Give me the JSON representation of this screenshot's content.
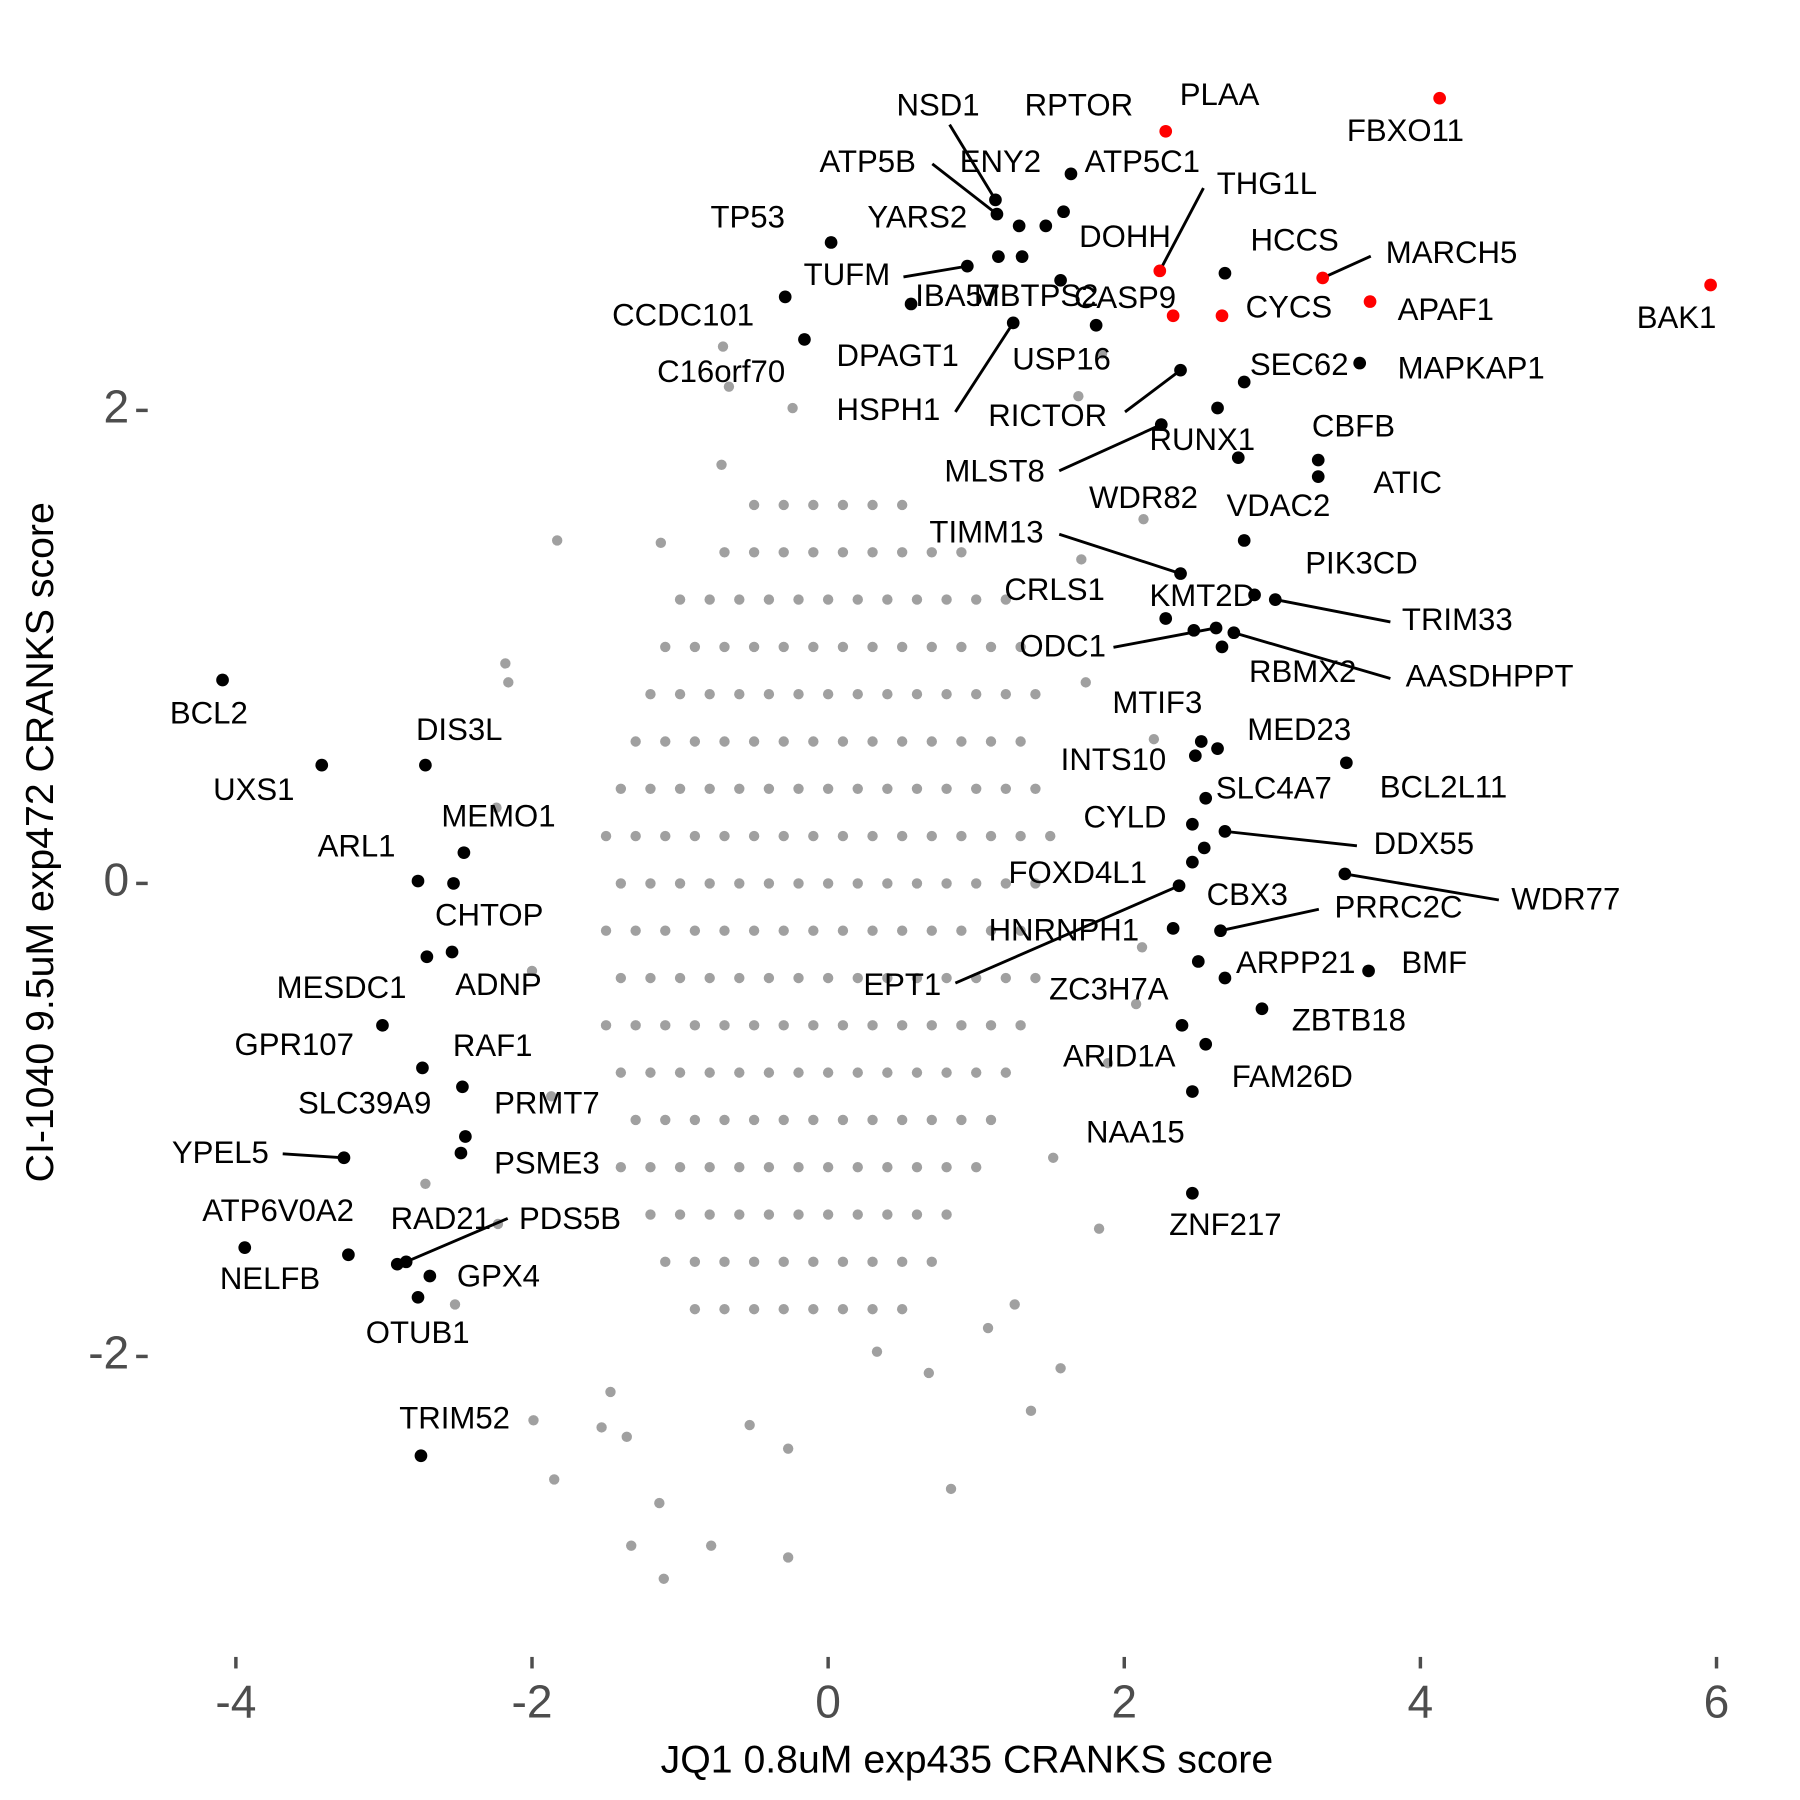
{
  "chart_data": {
    "type": "scatter",
    "xlabel": "JQ1 0.8uM exp435 CRANKS score",
    "ylabel": "CI-1040 9.5uM exp472 CRANKS score",
    "xlim": [
      -4.58,
      6.33
    ],
    "ylim": [
      -3.29,
      3.54
    ],
    "xticks": [
      -4,
      -2,
      0,
      2,
      4,
      6
    ],
    "yticks": [
      -2,
      0,
      2
    ],
    "background": {
      "color": "#a0a0a0",
      "x": [
        -0.5,
        -0.3,
        -0.1,
        0.1,
        0.3,
        0.5,
        -0.7,
        -0.5,
        -0.3,
        -0.1,
        0.1,
        0.3,
        0.5,
        0.7,
        0.9,
        -1.0,
        -0.8,
        -0.6,
        -0.4,
        -0.2,
        0,
        0.2,
        0.4,
        0.6,
        0.8,
        1.0,
        1.2,
        -1.1,
        -0.9,
        -0.7,
        -0.5,
        -0.3,
        -0.1,
        0.1,
        0.3,
        0.5,
        0.7,
        0.9,
        1.1,
        1.3,
        -1.2,
        -1.0,
        -0.8,
        -0.6,
        -0.4,
        -0.2,
        0,
        0.2,
        0.4,
        0.6,
        0.8,
        1.0,
        1.2,
        1.4,
        -1.3,
        -1.1,
        -0.9,
        -0.7,
        -0.5,
        -0.3,
        -0.1,
        0.1,
        0.3,
        0.5,
        0.7,
        0.9,
        1.1,
        1.3,
        -1.4,
        -1.2,
        -1.0,
        -0.8,
        -0.6,
        -0.4,
        -0.2,
        0,
        0.2,
        0.4,
        0.6,
        0.8,
        1.0,
        1.2,
        1.4,
        -1.5,
        -1.3,
        -1.1,
        -0.9,
        -0.7,
        -0.5,
        -0.3,
        -0.1,
        0.1,
        0.3,
        0.5,
        0.7,
        0.9,
        1.1,
        1.3,
        1.5,
        -1.4,
        -1.2,
        -1.0,
        -0.8,
        -0.6,
        -0.4,
        -0.2,
        0,
        0.2,
        0.4,
        0.6,
        0.8,
        1.0,
        1.2,
        1.4,
        -1.5,
        -1.3,
        -1.1,
        -0.9,
        -0.7,
        -0.5,
        -0.3,
        -0.1,
        0.1,
        0.3,
        0.5,
        0.7,
        0.9,
        1.1,
        1.3,
        -1.4,
        -1.2,
        -1.0,
        -0.8,
        -0.6,
        -0.4,
        -0.2,
        0,
        0.2,
        0.4,
        0.6,
        0.8,
        1.0,
        1.2,
        1.4,
        -1.5,
        -1.3,
        -1.1,
        -0.9,
        -0.7,
        -0.5,
        -0.3,
        -0.1,
        0.1,
        0.3,
        0.5,
        0.7,
        0.9,
        1.1,
        1.3,
        -1.4,
        -1.2,
        -1.0,
        -0.8,
        -0.6,
        -0.4,
        -0.2,
        0,
        0.2,
        0.4,
        0.6,
        0.8,
        1.0,
        1.2,
        -1.3,
        -1.1,
        -0.9,
        -0.7,
        -0.5,
        -0.3,
        -0.1,
        0.1,
        0.3,
        0.5,
        0.7,
        0.9,
        1.1,
        -1.4,
        -1.2,
        -1.0,
        -0.8,
        -0.6,
        -0.4,
        -0.2,
        0,
        0.2,
        0.4,
        0.6,
        0.8,
        1.0,
        -1.2,
        -1.0,
        -0.8,
        -0.6,
        -0.4,
        -0.2,
        0,
        0.2,
        0.4,
        0.6,
        0.8,
        -1.1,
        -0.9,
        -0.7,
        -0.5,
        -0.3,
        -0.1,
        0.1,
        0.3,
        0.5,
        0.7,
        -0.9,
        -0.7,
        -0.5,
        -0.3,
        -0.1,
        0.1,
        0.3,
        0.5,
        -1.83,
        -2.18,
        -2.16,
        -0.72,
        -0.67,
        -0.24,
        -1.13,
        -0.71,
        1.85,
        1.69,
        2.13,
        1.71,
        1.74,
        2.2,
        2.12,
        2.08,
        1.52,
        1.26,
        1.08,
        1.37,
        0.83,
        1.57,
        -0.27,
        -0.53,
        -0.79,
        -1.11,
        -0.27,
        -1.33,
        -1.14,
        -1.85,
        -1.99,
        -1.53,
        -1.36,
        -2.23,
        -2.72,
        -2.52,
        -1.47,
        0.33,
        0.68,
        -2.24,
        -2.0,
        -1.87,
        1.89,
        1.83
      ],
      "y": [
        1.6,
        1.6,
        1.6,
        1.6,
        1.6,
        1.6,
        1.4,
        1.4,
        1.4,
        1.4,
        1.4,
        1.4,
        1.4,
        1.4,
        1.4,
        1.2,
        1.2,
        1.2,
        1.2,
        1.2,
        1.2,
        1.2,
        1.2,
        1.2,
        1.2,
        1.2,
        1.2,
        1.0,
        1.0,
        1.0,
        1.0,
        1.0,
        1.0,
        1.0,
        1.0,
        1.0,
        1.0,
        1.0,
        1.0,
        1.0,
        0.8,
        0.8,
        0.8,
        0.8,
        0.8,
        0.8,
        0.8,
        0.8,
        0.8,
        0.8,
        0.8,
        0.8,
        0.8,
        0.8,
        0.6,
        0.6,
        0.6,
        0.6,
        0.6,
        0.6,
        0.6,
        0.6,
        0.6,
        0.6,
        0.6,
        0.6,
        0.6,
        0.6,
        0.4,
        0.4,
        0.4,
        0.4,
        0.4,
        0.4,
        0.4,
        0.4,
        0.4,
        0.4,
        0.4,
        0.4,
        0.4,
        0.4,
        0.4,
        0.2,
        0.2,
        0.2,
        0.2,
        0.2,
        0.2,
        0.2,
        0.2,
        0.2,
        0.2,
        0.2,
        0.2,
        0.2,
        0.2,
        0.2,
        0.2,
        0,
        0,
        0,
        0,
        0,
        0,
        0,
        0,
        0,
        0,
        0,
        0,
        0,
        0,
        0,
        -0.2,
        -0.2,
        -0.2,
        -0.2,
        -0.2,
        -0.2,
        -0.2,
        -0.2,
        -0.2,
        -0.2,
        -0.2,
        -0.2,
        -0.2,
        -0.2,
        -0.2,
        -0.4,
        -0.4,
        -0.4,
        -0.4,
        -0.4,
        -0.4,
        -0.4,
        -0.4,
        -0.4,
        -0.4,
        -0.4,
        -0.4,
        -0.4,
        -0.4,
        -0.4,
        -0.6,
        -0.6,
        -0.6,
        -0.6,
        -0.6,
        -0.6,
        -0.6,
        -0.6,
        -0.6,
        -0.6,
        -0.6,
        -0.6,
        -0.6,
        -0.6,
        -0.6,
        -0.8,
        -0.8,
        -0.8,
        -0.8,
        -0.8,
        -0.8,
        -0.8,
        -0.8,
        -0.8,
        -0.8,
        -0.8,
        -0.8,
        -0.8,
        -0.8,
        -1.0,
        -1.0,
        -1.0,
        -1.0,
        -1.0,
        -1.0,
        -1.0,
        -1.0,
        -1.0,
        -1.0,
        -1.0,
        -1.0,
        -1.0,
        -1.2,
        -1.2,
        -1.2,
        -1.2,
        -1.2,
        -1.2,
        -1.2,
        -1.2,
        -1.2,
        -1.2,
        -1.2,
        -1.2,
        -1.2,
        -1.4,
        -1.4,
        -1.4,
        -1.4,
        -1.4,
        -1.4,
        -1.4,
        -1.4,
        -1.4,
        -1.4,
        -1.4,
        -1.6,
        -1.6,
        -1.6,
        -1.6,
        -1.6,
        -1.6,
        -1.6,
        -1.6,
        -1.6,
        -1.6,
        -1.8,
        -1.8,
        -1.8,
        -1.8,
        -1.8,
        -1.8,
        -1.8,
        -1.8,
        1.45,
        0.93,
        0.85,
        1.77,
        2.1,
        2.01,
        1.44,
        2.27,
        2.24,
        2.06,
        1.54,
        1.37,
        0.85,
        0.61,
        -0.27,
        -0.51,
        -1.16,
        -1.78,
        -1.88,
        -2.23,
        -2.56,
        -2.05,
        -2.39,
        -2.29,
        -2.8,
        -2.94,
        -2.85,
        -2.8,
        -2.62,
        -2.52,
        -2.27,
        -2.3,
        -2.34,
        -1.44,
        -1.27,
        -1.78,
        -2.15,
        -1.98,
        -2.07,
        0.32,
        -0.37,
        -0.9,
        -0.76,
        -1.46
      ]
    },
    "genes": {
      "labels": [
        "NSD1",
        "RPTOR",
        "PLAA",
        "FBXO11",
        "ATP5B",
        "ENY2",
        "ATP5C1",
        "YARS2",
        "TP53",
        "THG1L",
        "DOHH",
        "HCCS",
        "MARCH5",
        "TUFM",
        "IBA57",
        "MBTPS2",
        "CASP9",
        "CYCS",
        "APAF1",
        "BAK1",
        "CCDC101",
        "DPAGT1",
        "C16orf70",
        "USP16",
        "HSPH1",
        "RICTOR",
        "SEC62",
        "MAPKAP1",
        "RUNX1",
        "MLST8",
        "CBFB",
        "ATIC",
        "WDR82",
        "VDAC2",
        "TIMM13",
        "PIK3CD",
        "TRIM33",
        "CRLS1",
        "KMT2D",
        "ODC1",
        "RBMX2",
        "AASDHPPT",
        "MTIF3",
        "MED23",
        "INTS10",
        "BCL2L11",
        "SLC4A7",
        "CYLD",
        "DDX55",
        "FOXD4L1",
        "WDR77",
        "EPT1",
        "CBX3",
        "HNRNPH1",
        "PRRC2C",
        "ARPP21",
        "BMF",
        "ZC3H7A",
        "ZBTB18",
        "ARID1A",
        "FAM26D",
        "NAA15",
        "ZNF217",
        "BCL2",
        "UXS1",
        "DIS3L",
        "MEMO1",
        "ARL1",
        "CHTOP",
        "ADNP",
        "MESDC1",
        "GPR107",
        "RAF1",
        "SLC39A9",
        "PRMT7",
        "PSME3",
        "YPEL5",
        "ATP6V0A2",
        "NELFB",
        "RAD21",
        "PDS5B",
        "GPX4",
        "OTUB1",
        "TRIM52"
      ],
      "x": [
        1.13,
        1.64,
        2.28,
        4.13,
        1.14,
        1.29,
        1.59,
        1.47,
        0.02,
        2.24,
        1.57,
        2.68,
        3.34,
        0.94,
        0.56,
        1.31,
        2.33,
        2.66,
        3.66,
        5.96,
        -0.29,
        1.15,
        -0.16,
        1.81,
        1.25,
        2.38,
        2.81,
        3.59,
        2.63,
        2.25,
        3.31,
        3.31,
        2.77,
        2.81,
        2.38,
        2.88,
        3.02,
        2.28,
        2.47,
        2.62,
        2.66,
        2.74,
        2.52,
        2.63,
        2.48,
        3.5,
        2.55,
        2.46,
        2.68,
        2.54,
        3.49,
        2.37,
        2.46,
        2.33,
        2.65,
        2.68,
        3.65,
        2.5,
        2.93,
        2.39,
        2.55,
        2.46,
        2.46,
        -4.09,
        -3.42,
        -2.72,
        -2.46,
        -2.77,
        -2.53,
        -2.54,
        -2.71,
        -3.01,
        -2.74,
        -2.47,
        -2.45,
        -2.48,
        -3.27,
        -3.94,
        -3.24,
        -2.91,
        -2.85,
        -2.69,
        -2.77,
        -2.75
      ],
      "y": [
        2.89,
        3.0,
        3.18,
        3.32,
        2.83,
        2.78,
        2.84,
        2.78,
        2.71,
        2.59,
        2.55,
        2.58,
        2.56,
        2.61,
        2.45,
        2.65,
        2.4,
        2.4,
        2.46,
        2.53,
        2.48,
        2.65,
        2.3,
        2.36,
        2.37,
        2.17,
        2.12,
        2.2,
        2.01,
        1.94,
        1.79,
        1.72,
        1.8,
        1.45,
        1.31,
        1.22,
        1.2,
        1.12,
        1.07,
        1.08,
        1.0,
        1.06,
        0.6,
        0.57,
        0.54,
        0.51,
        0.36,
        0.25,
        0.22,
        0.15,
        0.04,
        -0.01,
        0.09,
        -0.19,
        -0.2,
        -0.4,
        -0.37,
        -0.33,
        -0.53,
        -0.6,
        -0.68,
        -0.88,
        -1.31,
        0.86,
        0.5,
        0.5,
        0.13,
        0.01,
        0,
        -0.29,
        -0.31,
        -0.6,
        -0.78,
        -0.86,
        -1.07,
        -1.14,
        -1.16,
        -1.54,
        -1.57,
        -1.61,
        -1.6,
        -1.66,
        -1.75,
        -2.42
      ],
      "colors": [
        "black",
        "black",
        "red",
        "red",
        "black",
        "black",
        "black",
        "black",
        "black",
        "red",
        "black",
        "black",
        "red",
        "black",
        "black",
        "black",
        "red",
        "red",
        "red",
        "red",
        "black",
        "black",
        "black",
        "black",
        "black",
        "black",
        "black",
        "black",
        "black",
        "black",
        "black",
        "black",
        "black",
        "black",
        "black",
        "black",
        "black",
        "black",
        "black",
        "black",
        "black",
        "black",
        "black",
        "black",
        "black",
        "black",
        "black",
        "black",
        "black",
        "black",
        "black",
        "black",
        "black",
        "black",
        "black",
        "black",
        "black",
        "black",
        "black",
        "black",
        "black",
        "black",
        "black",
        "black",
        "black",
        "black",
        "black",
        "black",
        "black",
        "black",
        "black",
        "black",
        "black",
        "black",
        "black",
        "black",
        "black",
        "black",
        "black",
        "black",
        "black",
        "black",
        "black",
        "black"
      ]
    }
  }
}
